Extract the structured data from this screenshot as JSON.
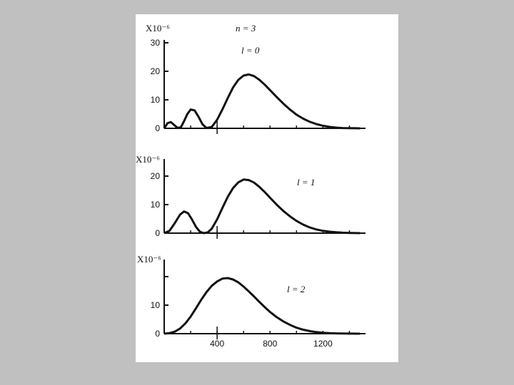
{
  "figure": {
    "background": "#c0c0c0",
    "panel_color": "#ffffff",
    "ink_color": "#111111"
  },
  "chart_data": [
    {
      "type": "line",
      "multiplier": "X10⁻⁶",
      "annotation_n": "n = 3",
      "annotation_l": "l = 0",
      "xlim": [
        0,
        1500
      ],
      "ylim": [
        0,
        30
      ],
      "yticks": [
        0,
        10,
        20,
        30
      ],
      "ytick_labels": [
        "0",
        "10",
        "20",
        "30"
      ],
      "xticks": [],
      "xtick_labels": [],
      "series": [
        {
          "x": [
            0,
            25,
            50,
            75,
            100,
            125,
            150,
            175,
            200,
            230,
            260,
            290,
            320,
            360,
            400,
            440,
            480,
            520,
            560,
            600,
            640,
            680,
            720,
            760,
            800,
            850,
            900,
            950,
            1000,
            1050,
            1100,
            1150,
            1200,
            1250,
            1300,
            1350,
            1400,
            1450,
            1480
          ],
          "y": [
            0,
            1.8,
            2.2,
            1.2,
            0.2,
            0.3,
            2.5,
            5.0,
            6.6,
            6.3,
            4.0,
            1.4,
            0.1,
            0.5,
            3.0,
            6.6,
            10.6,
            14.3,
            17.0,
            18.5,
            18.9,
            18.3,
            17.0,
            15.3,
            13.4,
            11.0,
            8.7,
            6.6,
            4.8,
            3.4,
            2.3,
            1.5,
            0.9,
            0.5,
            0.25,
            0.1,
            0.05,
            0.02,
            0
          ]
        }
      ]
    },
    {
      "type": "line",
      "multiplier": "X10⁻⁶",
      "annotation_l": "l = 1",
      "xlim": [
        0,
        1500
      ],
      "ylim": [
        0,
        25
      ],
      "yticks": [
        0,
        10,
        20
      ],
      "ytick_labels": [
        "0",
        "10",
        "20"
      ],
      "xticks": [],
      "xtick_labels": [],
      "series": [
        {
          "x": [
            0,
            40,
            80,
            120,
            150,
            180,
            210,
            240,
            270,
            300,
            330,
            360,
            400,
            440,
            480,
            520,
            560,
            600,
            640,
            680,
            720,
            760,
            800,
            850,
            900,
            950,
            1000,
            1050,
            1100,
            1150,
            1200,
            1250,
            1300,
            1350,
            1400,
            1450,
            1480
          ],
          "y": [
            0,
            0.8,
            3.5,
            6.5,
            7.6,
            7.0,
            4.8,
            2.2,
            0.5,
            0,
            0.3,
            1.6,
            4.8,
            8.8,
            12.7,
            15.8,
            17.8,
            18.8,
            18.6,
            17.7,
            16.2,
            14.4,
            12.4,
            10.0,
            7.8,
            5.9,
            4.3,
            3.0,
            2.0,
            1.3,
            0.8,
            0.5,
            0.3,
            0.15,
            0.08,
            0.03,
            0
          ]
        }
      ]
    },
    {
      "type": "line",
      "multiplier": "X10⁻⁶",
      "annotation_l": "l = 2",
      "xlim": [
        0,
        1500
      ],
      "ylim": [
        0,
        25
      ],
      "yticks": [
        0,
        10,
        20
      ],
      "ytick_labels": [
        "0",
        "10",
        ""
      ],
      "xticks": [
        400,
        800,
        1200
      ],
      "xtick_labels": [
        "400",
        "800",
        "1200"
      ],
      "series": [
        {
          "x": [
            0,
            40,
            80,
            120,
            160,
            200,
            240,
            280,
            320,
            360,
            400,
            440,
            480,
            520,
            560,
            600,
            640,
            680,
            720,
            760,
            800,
            850,
            900,
            950,
            1000,
            1050,
            1100,
            1150,
            1200,
            1250,
            1300,
            1350,
            1400,
            1450,
            1480
          ],
          "y": [
            0,
            0.2,
            0.7,
            1.8,
            3.6,
            6.0,
            8.9,
            11.9,
            14.6,
            16.8,
            18.3,
            19.3,
            19.5,
            19.0,
            18.0,
            16.5,
            14.8,
            13.0,
            11.1,
            9.3,
            7.6,
            5.8,
            4.3,
            3.1,
            2.1,
            1.4,
            0.9,
            0.55,
            0.32,
            0.18,
            0.1,
            0.05,
            0.02,
            0.01,
            0
          ]
        }
      ]
    }
  ]
}
